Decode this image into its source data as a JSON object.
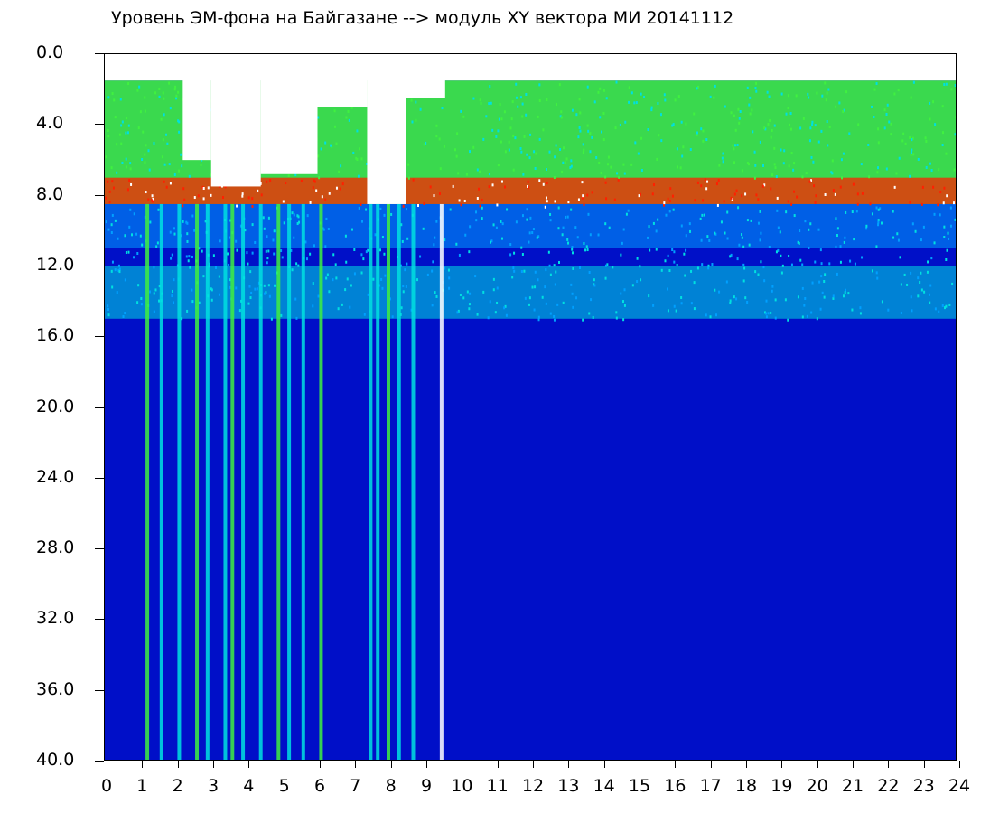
{
  "chart_data": {
    "type": "heatmap",
    "title": "Уровень ЭМ-фона на Байгазане   -->  модуль XY вектора МИ   20141112",
    "x_ticks": [
      "0",
      "1",
      "2",
      "3",
      "4",
      "5",
      "6",
      "7",
      "8",
      "9",
      "10",
      "11",
      "12",
      "13",
      "14",
      "15",
      "16",
      "17",
      "18",
      "19",
      "20",
      "21",
      "22",
      "23",
      "24"
    ],
    "y_ticks": [
      "0.0",
      "4.0",
      "8.0",
      "12.0",
      "16.0",
      "20.0",
      "24.0",
      "28.0",
      "32.0",
      "36.0",
      "40.0"
    ],
    "xlim": [
      0,
      24
    ],
    "ylim": [
      40,
      0
    ],
    "grid": false,
    "colormap": [
      "#0010c8",
      "#00a0ff",
      "#00e0e0",
      "#40f040",
      "#f0f000",
      "#ff2000",
      "#ffffff"
    ],
    "bands": [
      {
        "y_from": 1.5,
        "y_to": 8.5,
        "level": "high",
        "note_color": "#40f040"
      },
      {
        "y_from": 7.0,
        "y_to": 8.5,
        "level": "very high",
        "note_color": "#ff2000"
      },
      {
        "y_from": 8.5,
        "y_to": 11.0,
        "level": "medium",
        "note_color": "#00a0ff"
      },
      {
        "y_from": 12.0,
        "y_to": 15.0,
        "level": "medium",
        "note_color": "#00e0e0"
      },
      {
        "y_from": 15.0,
        "y_to": 40.0,
        "level": "low",
        "note_color": "#0010c8"
      }
    ],
    "stripe_hours": [
      1.2,
      1.6,
      2.1,
      2.6,
      2.9,
      3.4,
      3.6,
      3.9,
      4.4,
      4.9,
      5.2,
      5.6,
      6.1,
      7.5,
      7.7,
      8.0,
      8.3,
      8.7,
      9.5
    ]
  }
}
